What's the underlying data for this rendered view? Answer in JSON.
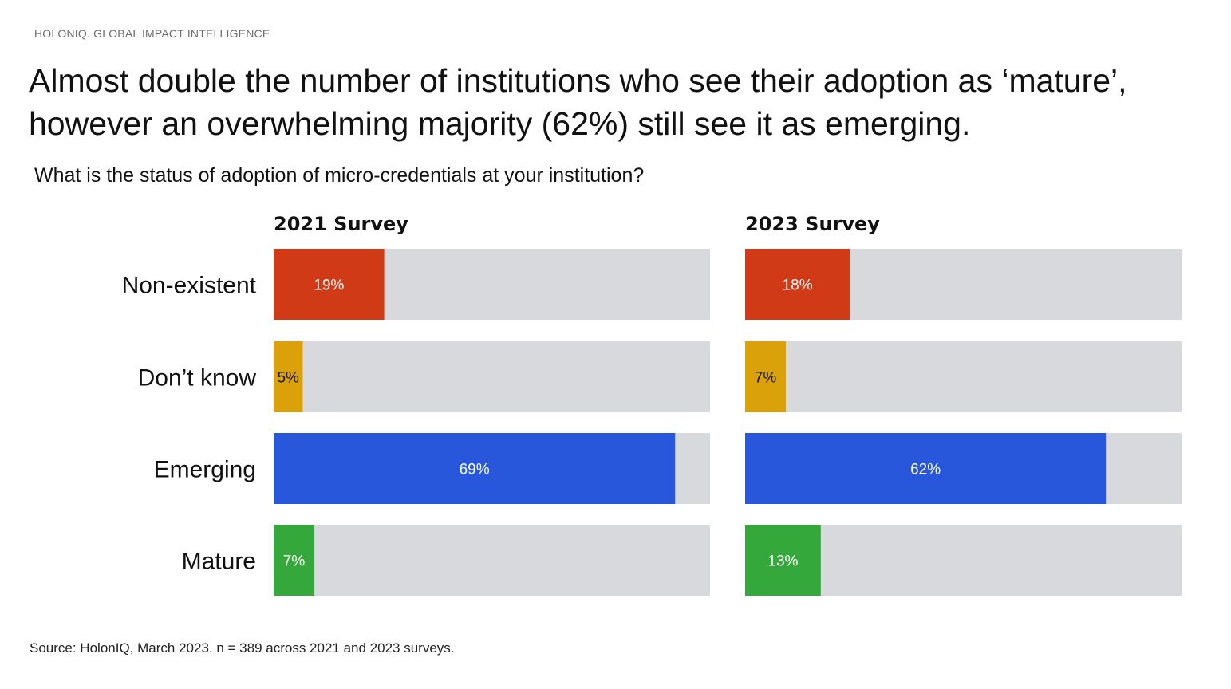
{
  "header": {
    "brand": "HOLONIQ. GLOBAL IMPACT INTELLIGENCE",
    "title": "Almost double the number of institutions who see their adoption as ‘mature’, however an overwhelming majority (62%) still see it as emerging.",
    "subtitle": "What is the status of adoption of micro-credentials at your institution?"
  },
  "footer": {
    "source": "Source: HolonIQ, March 2023. n = 389 across 2021 and 2023 surveys."
  },
  "colors": {
    "track": "#d8d9dc",
    "non_existent": "#d03a17",
    "dont_know": "#dba10b",
    "emerging": "#2857dc",
    "mature": "#34a83b"
  },
  "chart_data": {
    "type": "bar",
    "orientation": "horizontal",
    "categories": [
      "Non-existent",
      "Don’t know",
      "Emerging",
      "Mature"
    ],
    "xlim": [
      0,
      75
    ],
    "panels": [
      {
        "title": "2021 Survey",
        "values": [
          19,
          5,
          69,
          7
        ],
        "labels": [
          "19%",
          "5%",
          "69%",
          "7%"
        ]
      },
      {
        "title": "2023 Survey",
        "values": [
          18,
          7,
          62,
          13
        ],
        "labels": [
          "18%",
          "7%",
          "62%",
          "13%"
        ]
      }
    ],
    "bar_colors": [
      "#d03a17",
      "#dba10b",
      "#2857dc",
      "#34a83b"
    ],
    "label_colors": [
      "#ffffff",
      "#111111",
      "#ffffff",
      "#ffffff"
    ]
  }
}
